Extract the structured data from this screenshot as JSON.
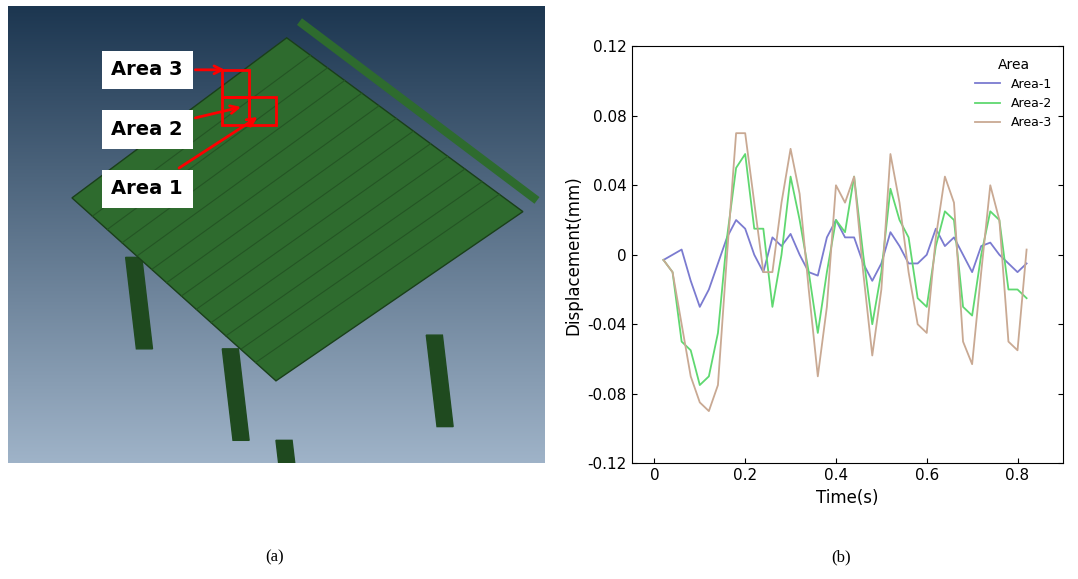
{
  "chart_data": {
    "type": "line",
    "x_label": "Time(s)",
    "y_label": "Displacement(mm)",
    "legend_title": "Area",
    "legend": "upper right",
    "grid": false,
    "x": [
      0.02,
      0.04,
      0.06,
      0.08,
      0.1,
      0.12,
      0.14,
      0.16,
      0.18,
      0.2,
      0.22,
      0.24,
      0.26,
      0.28,
      0.3,
      0.32,
      0.34,
      0.36,
      0.38,
      0.4,
      0.42,
      0.44,
      0.46,
      0.48,
      0.5,
      0.52,
      0.54,
      0.56,
      0.58,
      0.6,
      0.62,
      0.64,
      0.66,
      0.68,
      0.7,
      0.72,
      0.74,
      0.76,
      0.78,
      0.8,
      0.82
    ],
    "xlim": [
      -0.05,
      0.9
    ],
    "xticks": [
      0,
      0.2,
      0.4,
      0.6,
      0.8
    ],
    "ylim": [
      -0.12,
      0.12
    ],
    "yticks": [
      -0.12,
      -0.08,
      -0.04,
      0,
      0.04,
      0.08,
      0.12
    ],
    "series": [
      {
        "name": "Area-1",
        "color": "#7b7bd0",
        "values": [
          -0.003,
          0.0,
          0.003,
          -0.015,
          -0.03,
          -0.02,
          -0.005,
          0.01,
          0.02,
          0.015,
          0.0,
          -0.01,
          0.01,
          0.005,
          0.012,
          0.0,
          -0.01,
          -0.012,
          0.01,
          0.02,
          0.01,
          0.01,
          -0.005,
          -0.015,
          -0.005,
          0.013,
          0.005,
          -0.005,
          -0.005,
          0.0,
          0.015,
          0.005,
          0.01,
          0.0,
          -0.01,
          0.005,
          0.007,
          0.0,
          -0.005,
          -0.01,
          -0.005
        ]
      },
      {
        "name": "Area-2",
        "color": "#5fd870",
        "values": [
          -0.003,
          -0.01,
          -0.05,
          -0.055,
          -0.075,
          -0.07,
          -0.045,
          0.01,
          0.05,
          0.058,
          0.015,
          0.015,
          -0.03,
          0.0,
          0.045,
          0.02,
          -0.01,
          -0.045,
          -0.01,
          0.02,
          0.013,
          0.045,
          0.0,
          -0.04,
          -0.01,
          0.038,
          0.02,
          0.01,
          -0.025,
          -0.03,
          0.005,
          0.025,
          0.02,
          -0.03,
          -0.035,
          0.0,
          0.025,
          0.02,
          -0.02,
          -0.02,
          -0.025
        ]
      },
      {
        "name": "Area-3",
        "color": "#c9a993",
        "values": [
          -0.003,
          -0.01,
          -0.04,
          -0.07,
          -0.085,
          -0.09,
          -0.075,
          0.0,
          0.07,
          0.07,
          0.03,
          -0.01,
          -0.01,
          0.03,
          0.061,
          0.035,
          -0.02,
          -0.07,
          -0.03,
          0.04,
          0.03,
          0.045,
          -0.01,
          -0.058,
          -0.02,
          0.058,
          0.03,
          -0.01,
          -0.04,
          -0.045,
          0.01,
          0.045,
          0.03,
          -0.05,
          -0.063,
          -0.01,
          0.04,
          0.02,
          -0.05,
          -0.055,
          0.003
        ]
      }
    ]
  },
  "model_view": {
    "labels": [
      "Area 3",
      "Area 2",
      "Area 1"
    ]
  },
  "captions": [
    "(a)",
    "(b)"
  ]
}
